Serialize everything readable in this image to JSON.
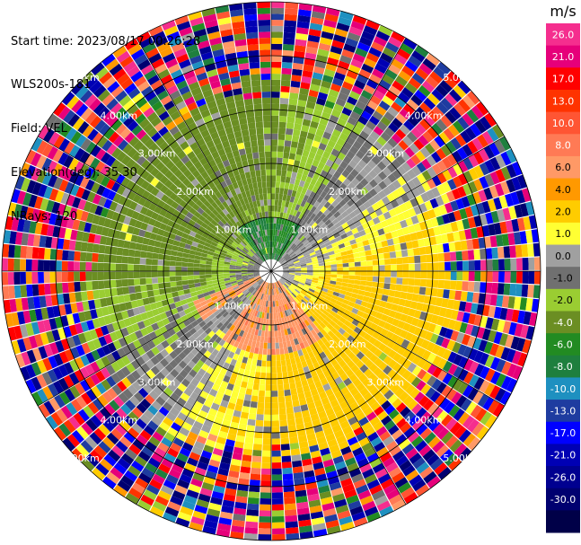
{
  "header": {
    "start_time": "Start time: 2023/08/17 00:26:28",
    "instrument": "WLS200s-181",
    "field": "Field: VEL",
    "elevation": "Elevation(deg): 35.30",
    "nrays": "NRays: 120"
  },
  "chart_data": {
    "type": "heatmap",
    "projection": "polar-ppi",
    "field": "VEL",
    "units": "m/s",
    "n_rays": 120,
    "max_range_km": 5.0,
    "range_rings_km": [
      1,
      2,
      3,
      4,
      5
    ],
    "ring_labels": [
      "1.00km",
      "2.00km",
      "3.00km",
      "4.00km",
      "5.00km"
    ],
    "colorbar": {
      "label": "m/s",
      "ticks": [
        "26.0",
        "21.0",
        "17.0",
        "13.0",
        "10.0",
        "8.0",
        "6.0",
        "4.0",
        "2.0",
        "1.0",
        "0.0",
        "-1.0",
        "-2.0",
        "-4.0",
        "-6.0",
        "-8.0",
        "-10.0",
        "-13.0",
        "-17.0",
        "-21.0",
        "-26.0",
        "-30.0"
      ],
      "colors": [
        "#f52e8e",
        "#e6007a",
        "#ff0000",
        "#ff3300",
        "#ff5533",
        "#ff7a55",
        "#ff9966",
        "#ff9900",
        "#ffcc00",
        "#ffff33",
        "#a0a0a0",
        "#707070",
        "#9acd32",
        "#6b8e23",
        "#228b22",
        "#1e7f3e",
        "#1e90c0",
        "#1e3ca0",
        "#0000ff",
        "#0000b4",
        "#000090",
        "#000070",
        "#000048"
      ]
    },
    "regions": [
      {
        "description": "near-zero grey band",
        "value": 0.0
      },
      {
        "description": "northwest receding",
        "value": -3.0
      },
      {
        "description": "southeast approaching",
        "value": 2.5
      }
    ]
  }
}
